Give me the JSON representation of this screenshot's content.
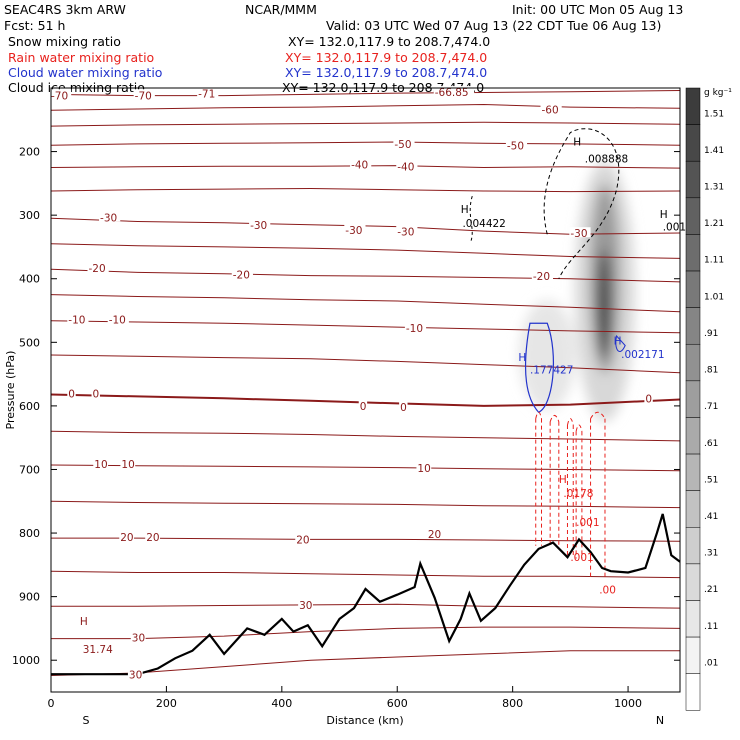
{
  "header": {
    "model": "SEAC4RS   3km ARW",
    "center": "NCAR/MMM",
    "init": "Init: 00 UTC Mon 05 Aug 13",
    "fcst": "Fcst:    51 h",
    "valid": "Valid: 03 UTC Wed 07 Aug 13 (22 CDT Tue 06 Aug 13)"
  },
  "fields": [
    {
      "label": "Snow mixing ratio",
      "xy": "XY=  132.0,117.9 to 208.7,474.0",
      "color": "#000000"
    },
    {
      "label": "Rain water mixing ratio",
      "xy": "XY=  132.0,117.9 to 208.7,474.0",
      "color": "#e8221e"
    },
    {
      "label": "Cloud water mixing ratio",
      "xy": "XY=  132.0,117.9 to 208.7,474.0",
      "color": "#2233cc"
    },
    {
      "label": "Cloud ice mixing ratio",
      "xy": "XY=  132.0,117.9 to 208.7,474.0",
      "color": "#000000"
    }
  ],
  "colorbar": {
    "unit": "g kg⁻¹",
    "labels": [
      "1.51",
      "1.41",
      "1.31",
      "1.21",
      "1.11",
      "1.01",
      ".91",
      ".81",
      ".71",
      ".61",
      ".51",
      ".41",
      ".31",
      ".21",
      ".11",
      ".01"
    ]
  },
  "chart_data": {
    "type": "contour",
    "xlabel": "Distance (km)",
    "ylabel": "Pressure (hPa)",
    "x_ticks": [
      0,
      200,
      400,
      600,
      800,
      1000
    ],
    "y_ticks": [
      200,
      300,
      400,
      500,
      600,
      700,
      800,
      900,
      1000
    ],
    "xlim": [
      0,
      1090
    ],
    "ylim": [
      1050,
      100
    ],
    "y_scale": "linear, inverted",
    "left_end_label": "S",
    "right_end_label": "N",
    "temperature_contour_labels": [
      {
        "text": "-70",
        "x": 0,
        "p": 113
      },
      {
        "text": "-70",
        "x": 145,
        "p": 113
      },
      {
        "text": "-71",
        "x": 255,
        "p": 110
      },
      {
        "text": "-66.85",
        "x": 665,
        "p": 108
      },
      {
        "text": "-60",
        "x": 850,
        "p": 135
      },
      {
        "text": "-50",
        "x": 595,
        "p": 190
      },
      {
        "text": "-50",
        "x": 790,
        "p": 192
      },
      {
        "text": "-40",
        "x": 520,
        "p": 222
      },
      {
        "text": "-40",
        "x": 600,
        "p": 225
      },
      {
        "text": "-30",
        "x": 85,
        "p": 305
      },
      {
        "text": "-30",
        "x": 345,
        "p": 317
      },
      {
        "text": "-30",
        "x": 510,
        "p": 325
      },
      {
        "text": "-30",
        "x": 600,
        "p": 327
      },
      {
        "text": "-30",
        "x": 900,
        "p": 330
      },
      {
        "text": "-20",
        "x": 65,
        "p": 385
      },
      {
        "text": "-20",
        "x": 315,
        "p": 395
      },
      {
        "text": "-20",
        "x": 835,
        "p": 397
      },
      {
        "text": "-10",
        "x": 30,
        "p": 466
      },
      {
        "text": "-10",
        "x": 100,
        "p": 466
      },
      {
        "text": "-10",
        "x": 615,
        "p": 479
      },
      {
        "text": "0",
        "x": 30,
        "p": 582
      },
      {
        "text": "0",
        "x": 72,
        "p": 582
      },
      {
        "text": "0",
        "x": 535,
        "p": 602
      },
      {
        "text": "0",
        "x": 605,
        "p": 603
      },
      {
        "text": "0",
        "x": 1030,
        "p": 590
      },
      {
        "text": "10",
        "x": 75,
        "p": 693
      },
      {
        "text": "10",
        "x": 122,
        "p": 693
      },
      {
        "text": "10",
        "x": 635,
        "p": 699
      },
      {
        "text": "20",
        "x": 120,
        "p": 808
      },
      {
        "text": "20",
        "x": 165,
        "p": 808
      },
      {
        "text": "20",
        "x": 425,
        "p": 812
      },
      {
        "text": "20",
        "x": 653,
        "p": 803
      },
      {
        "text": "30",
        "x": 430,
        "p": 915
      },
      {
        "text": "30",
        "x": 140,
        "p": 966
      },
      {
        "text": "30",
        "x": 135,
        "p": 1024
      }
    ],
    "extrema_labels": [
      {
        "text": "H",
        "x": 50,
        "p": 938
      },
      {
        "text": "31.74",
        "x": 55,
        "p": 982
      },
      {
        "text": "H",
        "x": 710,
        "p": 290
      },
      {
        "text": ".004422",
        "x": 713,
        "p": 312
      },
      {
        "text": "H",
        "x": 905,
        "p": 184
      },
      {
        "text": ".008888",
        "x": 925,
        "p": 211
      },
      {
        "text": "H",
        "x": 1055,
        "p": 298
      },
      {
        "text": ".001",
        "x": 1060,
        "p": 318
      },
      {
        "text": "H",
        "x": 810,
        "p": 523
      },
      {
        "text": ".177427",
        "x": 830,
        "p": 543
      },
      {
        "text": "H",
        "x": 975,
        "p": 497
      },
      {
        "text": ".002171",
        "x": 988,
        "p": 518
      },
      {
        "text": "H",
        "x": 880,
        "p": 715
      },
      {
        "text": ".0178",
        "x": 888,
        "p": 737
      },
      {
        "text": ".001",
        "x": 910,
        "p": 783
      },
      {
        "text": ".001",
        "x": 900,
        "p": 838
      },
      {
        "text": ".00",
        "x": 950,
        "p": 889
      }
    ],
    "shading_field": "Snow mixing ratio",
    "shading_max": 1.51,
    "terrain_surface_pressure": [
      {
        "x": 0,
        "p": 1022
      },
      {
        "x": 150,
        "p": 1022
      },
      {
        "x": 185,
        "p": 1013
      },
      {
        "x": 215,
        "p": 997
      },
      {
        "x": 245,
        "p": 985
      },
      {
        "x": 275,
        "p": 960
      },
      {
        "x": 300,
        "p": 990
      },
      {
        "x": 340,
        "p": 950
      },
      {
        "x": 370,
        "p": 960
      },
      {
        "x": 400,
        "p": 935
      },
      {
        "x": 420,
        "p": 955
      },
      {
        "x": 445,
        "p": 945
      },
      {
        "x": 470,
        "p": 978
      },
      {
        "x": 500,
        "p": 935
      },
      {
        "x": 525,
        "p": 918
      },
      {
        "x": 545,
        "p": 888
      },
      {
        "x": 570,
        "p": 908
      },
      {
        "x": 600,
        "p": 897
      },
      {
        "x": 630,
        "p": 885
      },
      {
        "x": 640,
        "p": 848
      },
      {
        "x": 665,
        "p": 902
      },
      {
        "x": 690,
        "p": 970
      },
      {
        "x": 710,
        "p": 935
      },
      {
        "x": 725,
        "p": 895
      },
      {
        "x": 745,
        "p": 938
      },
      {
        "x": 770,
        "p": 918
      },
      {
        "x": 795,
        "p": 883
      },
      {
        "x": 820,
        "p": 850
      },
      {
        "x": 845,
        "p": 825
      },
      {
        "x": 870,
        "p": 815
      },
      {
        "x": 895,
        "p": 838
      },
      {
        "x": 915,
        "p": 810
      },
      {
        "x": 935,
        "p": 830
      },
      {
        "x": 955,
        "p": 855
      },
      {
        "x": 970,
        "p": 860
      },
      {
        "x": 1000,
        "p": 862
      },
      {
        "x": 1030,
        "p": 855
      },
      {
        "x": 1050,
        "p": 800
      },
      {
        "x": 1060,
        "p": 770
      },
      {
        "x": 1075,
        "p": 835
      },
      {
        "x": 1090,
        "p": 845
      }
    ]
  }
}
